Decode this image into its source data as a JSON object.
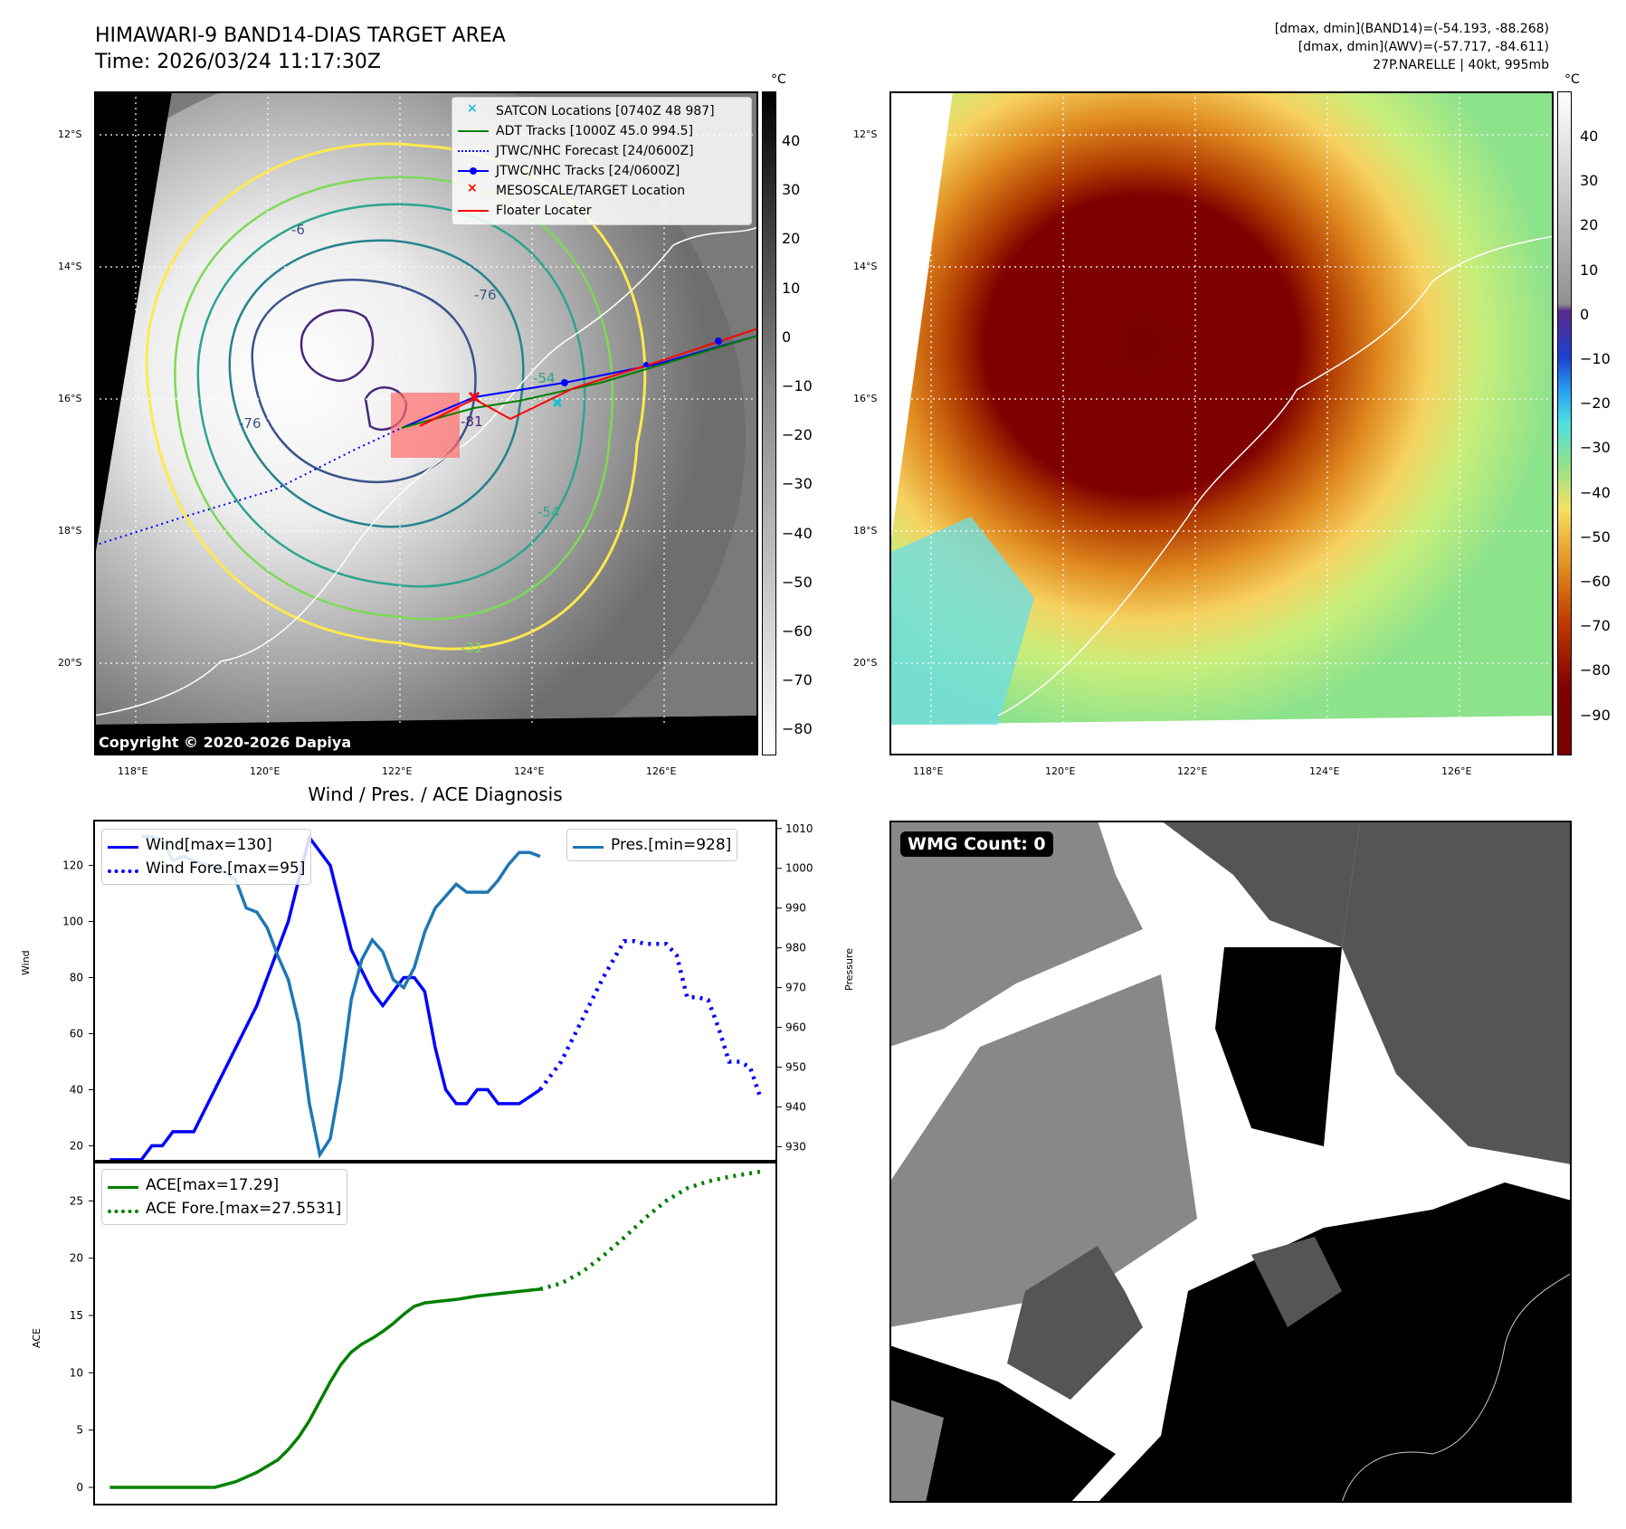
{
  "header": {
    "title_line1": "HIMAWARI-9 BAND14-DIAS TARGET AREA",
    "title_line2": "Time: 2026/03/24 11:17:30Z",
    "info_line1": "[dmax, dmin](BAND14)=(-54.193, -88.268)",
    "info_line2": "[dmax, dmin](AWV)=(-57.717, -84.611)",
    "info_line3": "27P.NARELLE | 40kt, 995mb"
  },
  "map": {
    "lat_labels": [
      "12°S",
      "14°S",
      "16°S",
      "18°S",
      "20°S"
    ],
    "lon_labels": [
      "118°E",
      "120°E",
      "122°E",
      "124°E",
      "126°E"
    ],
    "copyright": "Copyright © 2020-2026 Dapiya",
    "contour_labels": [
      "-31",
      "-54",
      "-76",
      "-81",
      "-6",
      "-54",
      "-31"
    ],
    "legend": [
      {
        "label": "SATCON Locations [0740Z 48 987]",
        "color": "#17becf",
        "style": "x"
      },
      {
        "label": "ADT Tracks [1000Z 45.0 994.5]",
        "color": "#008000",
        "style": "line"
      },
      {
        "label": "JTWC/NHC Forecast [24/0600Z]",
        "color": "#0000ff",
        "style": "dotted"
      },
      {
        "label": "JTWC/NHC Tracks [24/0600Z]",
        "color": "#0000ff",
        "style": "line-dot"
      },
      {
        "label": "MESOSCALE/TARGET Location",
        "color": "#ff0000",
        "style": "x"
      },
      {
        "label": "Floater Locater",
        "color": "#ff0000",
        "style": "line"
      }
    ]
  },
  "colorbar_left": {
    "unit": "°C",
    "ticks": [
      "40",
      "30",
      "20",
      "10",
      "0",
      "−10",
      "−20",
      "−30",
      "−40",
      "−50",
      "−60",
      "−70",
      "−80"
    ]
  },
  "colorbar_right": {
    "unit": "°C",
    "ticks": [
      "40",
      "30",
      "20",
      "10",
      "0",
      "−10",
      "−20",
      "−30",
      "−40",
      "−50",
      "−60",
      "−70",
      "−80",
      "−90"
    ]
  },
  "wmg": {
    "label": "WMG Count: 0"
  },
  "chart_data": [
    {
      "type": "line",
      "title": "Wind / Pres. / ACE Diagnosis",
      "ylabel": "Wind",
      "y2label": "Pressure",
      "ylim": [
        14,
        136
      ],
      "y2lim": [
        926,
        1012
      ],
      "yticks": [
        20,
        40,
        60,
        80,
        100,
        120
      ],
      "y2ticks": [
        930,
        940,
        950,
        960,
        970,
        980,
        990,
        1000,
        1010
      ],
      "x": [
        0,
        1,
        2,
        3,
        4,
        5,
        6,
        7,
        8,
        9,
        10,
        11,
        12,
        13,
        14,
        15,
        16,
        17,
        18,
        19,
        20,
        21,
        22,
        23,
        24,
        25,
        26,
        27,
        28,
        29,
        30,
        31,
        32,
        33,
        34,
        35,
        36,
        37,
        38,
        39,
        40,
        41,
        42,
        43,
        44,
        45,
        46,
        47,
        48,
        49,
        50,
        51,
        52,
        53,
        54,
        55,
        56,
        57,
        58,
        59,
        60
      ],
      "series": [
        {
          "name": "Wind[max=130]",
          "color": "#0000ff",
          "style": "solid",
          "points": [
            [
              0,
              15
            ],
            [
              3,
              15
            ],
            [
              4,
              20
            ],
            [
              5,
              20
            ],
            [
              6,
              25
            ],
            [
              8,
              25
            ],
            [
              14,
              70
            ],
            [
              17,
              100
            ],
            [
              19,
              130
            ],
            [
              21,
              120
            ],
            [
              23,
              90
            ],
            [
              25,
              75
            ],
            [
              26,
              70
            ],
            [
              28,
              80
            ],
            [
              29,
              80
            ],
            [
              30,
              75
            ],
            [
              31,
              55
            ],
            [
              32,
              40
            ],
            [
              33,
              35
            ],
            [
              34,
              35
            ],
            [
              35,
              40
            ],
            [
              36,
              40
            ],
            [
              37,
              35
            ],
            [
              39,
              35
            ],
            [
              41,
              40
            ]
          ]
        },
        {
          "name": "Wind Fore.[max=95]",
          "color": "#0000ff",
          "style": "dotted",
          "points": [
            [
              41,
              40
            ],
            [
              43,
              50
            ],
            [
              45,
              65
            ],
            [
              47,
              80
            ],
            [
              49,
              93
            ],
            [
              50,
              93
            ],
            [
              51,
              92
            ],
            [
              53,
              92
            ],
            [
              54,
              88
            ],
            [
              55,
              73
            ],
            [
              56,
              73
            ],
            [
              57,
              72
            ],
            [
              58,
              62
            ],
            [
              59,
              50
            ],
            [
              60,
              50
            ],
            [
              61,
              48
            ],
            [
              62,
              37
            ]
          ]
        },
        {
          "name": "Pres.[min=928]",
          "color": "#1f77b4",
          "style": "solid",
          "axis": "y2",
          "points": [
            [
              3,
              1008
            ],
            [
              4,
              1008
            ],
            [
              5,
              1007
            ],
            [
              6,
              1002
            ],
            [
              7,
              1003
            ],
            [
              8,
              1002
            ],
            [
              9,
              1001
            ],
            [
              10,
              1000
            ],
            [
              11,
              999
            ],
            [
              12,
              997
            ],
            [
              13,
              990
            ],
            [
              14,
              989
            ],
            [
              15,
              985
            ],
            [
              16,
              978
            ],
            [
              17,
              972
            ],
            [
              18,
              961
            ],
            [
              19,
              941
            ],
            [
              20,
              928
            ],
            [
              21,
              932
            ],
            [
              22,
              947
            ],
            [
              23,
              967
            ],
            [
              24,
              977
            ],
            [
              25,
              982
            ],
            [
              26,
              979
            ],
            [
              27,
              972
            ],
            [
              28,
              970
            ],
            [
              29,
              975
            ],
            [
              30,
              984
            ],
            [
              31,
              990
            ],
            [
              32,
              993
            ],
            [
              33,
              996
            ],
            [
              34,
              994
            ],
            [
              36,
              994
            ],
            [
              37,
              997
            ],
            [
              38,
              1001
            ],
            [
              39,
              1004
            ],
            [
              40,
              1004
            ],
            [
              41,
              1003
            ]
          ]
        }
      ],
      "legend_left": [
        "Wind[max=130]",
        "Wind Fore.[max=95]"
      ],
      "legend_right": [
        "Pres.[min=928]"
      ]
    },
    {
      "type": "line",
      "ylabel": "ACE",
      "ylim": [
        -1.5,
        28.5
      ],
      "yticks": [
        0,
        5,
        10,
        15,
        20,
        25
      ],
      "series": [
        {
          "name": "ACE[max=17.29]",
          "color": "#008000",
          "style": "solid",
          "points": [
            [
              0,
              0
            ],
            [
              10,
              0
            ],
            [
              12,
              0.5
            ],
            [
              14,
              1.3
            ],
            [
              16,
              2.4
            ],
            [
              17,
              3.3
            ],
            [
              18,
              4.4
            ],
            [
              19,
              5.8
            ],
            [
              20,
              7.5
            ],
            [
              21,
              9.2
            ],
            [
              22,
              10.7
            ],
            [
              23,
              11.8
            ],
            [
              24,
              12.5
            ],
            [
              25,
              13
            ],
            [
              26,
              13.6
            ],
            [
              27,
              14.3
            ],
            [
              28,
              15.1
            ],
            [
              29,
              15.8
            ],
            [
              30,
              16.1
            ],
            [
              31,
              16.2
            ],
            [
              33,
              16.4
            ],
            [
              35,
              16.7
            ],
            [
              37,
              16.9
            ],
            [
              39,
              17.1
            ],
            [
              41,
              17.3
            ]
          ]
        },
        {
          "name": "ACE Fore.[max=27.5531]",
          "color": "#008000",
          "style": "dotted",
          "points": [
            [
              41,
              17.3
            ],
            [
              43,
              17.8
            ],
            [
              45,
              18.8
            ],
            [
              47,
              20.2
            ],
            [
              49,
              21.8
            ],
            [
              51,
              23.5
            ],
            [
              53,
              25
            ],
            [
              55,
              26.1
            ],
            [
              57,
              26.7
            ],
            [
              59,
              27.1
            ],
            [
              61,
              27.4
            ],
            [
              62,
              27.55
            ]
          ]
        }
      ],
      "legend": [
        "ACE[max=17.29]",
        "ACE Fore.[max=27.5531]"
      ]
    }
  ]
}
